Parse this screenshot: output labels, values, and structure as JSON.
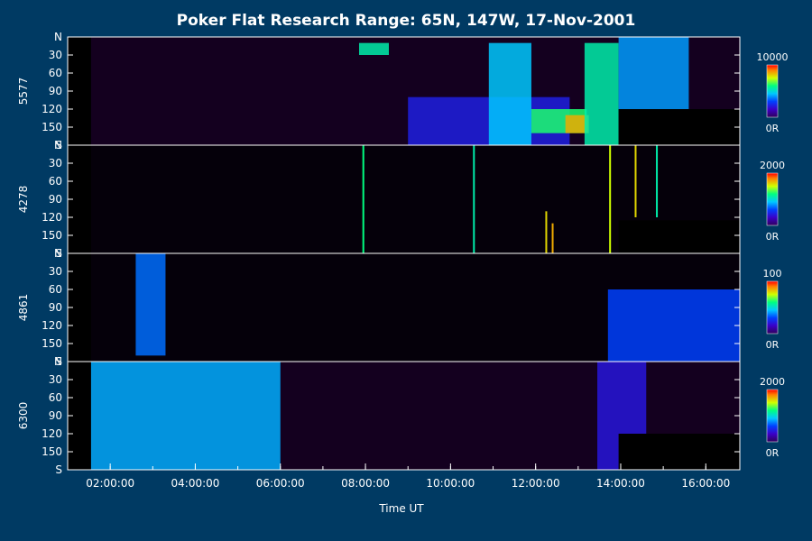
{
  "chart_data": {
    "type": "heatmap",
    "title": "Poker Flat Research Range: 65N, 147W, 17-Nov-2001",
    "xlabel": "Time UT",
    "x_ticks": [
      "02:00:00",
      "04:00:00",
      "06:00:00",
      "08:00:00",
      "10:00:00",
      "12:00:00",
      "14:00:00",
      "16:00:00"
    ],
    "x_range_hours": [
      1.0,
      16.8
    ],
    "y_ticks": [
      "N",
      "30",
      "60",
      "90",
      "120",
      "150",
      "S"
    ],
    "y_range_deg": [
      0,
      180
    ],
    "panels": [
      {
        "label": "5577",
        "colorbar_max": "10000",
        "colorbar_min": "0R",
        "features": [
          {
            "t0": 7.85,
            "t1": 8.55,
            "a0": 10,
            "a1": 30,
            "level": 0.55
          },
          {
            "t0": 9.0,
            "t1": 12.8,
            "a0": 100,
            "a1": 180,
            "level": 0.22
          },
          {
            "t0": 10.9,
            "t1": 11.9,
            "a0": 10,
            "a1": 180,
            "level": 0.45
          },
          {
            "t0": 11.9,
            "t1": 13.2,
            "a0": 120,
            "a1": 160,
            "level": 0.62
          },
          {
            "t0": 12.7,
            "t1": 13.25,
            "a0": 130,
            "a1": 160,
            "level": 0.85
          },
          {
            "t0": 13.15,
            "t1": 13.95,
            "a0": 10,
            "a1": 180,
            "level": 0.55
          },
          {
            "t0": 13.95,
            "t1": 15.6,
            "a0": 0,
            "a1": 120,
            "level": 0.4
          }
        ],
        "dark_block": {
          "t0": 13.95,
          "t1": 16.8,
          "a0": 120,
          "a1": 180
        }
      },
      {
        "label": "4278",
        "colorbar_max": "2000",
        "colorbar_min": "0R",
        "streaks": [
          {
            "t": 7.95,
            "a0": 0,
            "a1": 180,
            "level": 0.6
          },
          {
            "t": 10.55,
            "a0": 0,
            "a1": 180,
            "level": 0.55
          },
          {
            "t": 12.25,
            "a0": 110,
            "a1": 180,
            "level": 0.8
          },
          {
            "t": 12.4,
            "a0": 130,
            "a1": 180,
            "level": 0.85
          },
          {
            "t": 13.75,
            "a0": 0,
            "a1": 180,
            "level": 0.75
          },
          {
            "t": 14.35,
            "a0": 0,
            "a1": 120,
            "level": 0.8
          },
          {
            "t": 14.85,
            "a0": 0,
            "a1": 120,
            "level": 0.55
          }
        ],
        "dark_block": {
          "t0": 13.95,
          "t1": 16.8,
          "a0": 125,
          "a1": 180
        }
      },
      {
        "label": "4861",
        "colorbar_max": "100",
        "colorbar_min": "0R",
        "features": [
          {
            "t0": 2.6,
            "t1": 3.3,
            "a0": 0,
            "a1": 170,
            "level": 0.35
          },
          {
            "t0": 13.7,
            "t1": 16.8,
            "a0": 60,
            "a1": 180,
            "level": 0.3
          }
        ]
      },
      {
        "label": "6300",
        "colorbar_max": "2000",
        "colorbar_min": "0R",
        "features": [
          {
            "t0": 1.55,
            "t1": 6.0,
            "a0": 0,
            "a1": 180,
            "level": 0.42
          },
          {
            "t0": 13.45,
            "t1": 14.6,
            "a0": 0,
            "a1": 180,
            "level": 0.2
          }
        ],
        "dark_block": {
          "t0": 13.95,
          "t1": 16.8,
          "a0": 120,
          "a1": 180
        }
      }
    ]
  }
}
